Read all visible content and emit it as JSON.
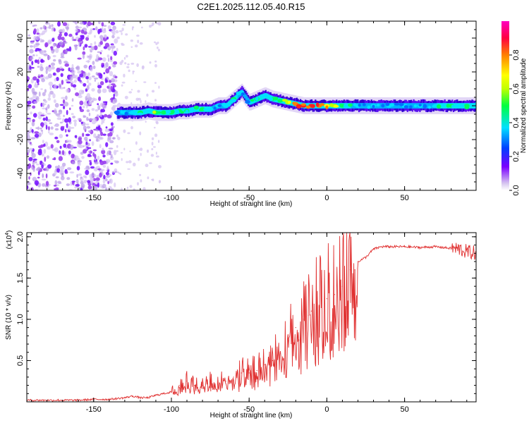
{
  "title": "C2E1.2025.112.05.40.R15",
  "chart_data": [
    {
      "type": "heatmap",
      "xlabel": "Height of straight line (km)",
      "ylabel": "Frequency (Hz)",
      "xlim": [
        -193,
        96
      ],
      "ylim": [
        -50,
        50
      ],
      "x_ticks": [
        -150,
        -100,
        -50,
        0,
        50
      ],
      "x_tick_labels": [
        "-150",
        "-100",
        "-50",
        "0",
        "50"
      ],
      "y_ticks": [
        -40,
        -20,
        0,
        20,
        40
      ],
      "y_tick_labels": [
        "-40",
        "-20",
        "0",
        "20",
        "40"
      ],
      "colorbar": {
        "label": "Normalized spectral amplitude",
        "range": [
          0,
          1
        ],
        "ticks": [
          0.0,
          0.2,
          0.4,
          0.6,
          0.8
        ],
        "tick_labels": [
          "0.0",
          "0.2",
          "0.4",
          "0.6",
          "0.8"
        ],
        "colormap": [
          "#d8c8f0",
          "#7a00ff",
          "#0040ff",
          "#00e0ff",
          "#00ff40",
          "#c0ff00",
          "#ffff00",
          "#ff8000",
          "#ff0040",
          "#ff00c0"
        ]
      },
      "noise_region_x": [
        -193,
        -135
      ],
      "trace": {
        "x": [
          -135,
          -130,
          -125,
          -120,
          -115,
          -110,
          -105,
          -100,
          -95,
          -90,
          -85,
          -80,
          -75,
          -70,
          -65,
          -60,
          -55,
          -50,
          -45,
          -40,
          -35,
          -30,
          -25,
          -20,
          -15,
          -10,
          -5,
          0,
          5,
          10,
          20,
          30,
          40,
          50,
          60,
          70,
          80,
          90,
          96
        ],
        "y": [
          -4,
          -4,
          -4,
          -4,
          -3,
          -4,
          -4,
          -4,
          -3,
          -3,
          -2,
          -2,
          -2,
          0,
          0,
          4,
          8,
          2,
          4,
          6,
          4,
          3,
          2,
          1,
          0,
          0,
          0,
          0,
          0,
          0,
          0,
          0,
          0,
          0,
          0,
          0,
          0,
          0,
          0
        ],
        "amplitude": [
          0.35,
          0.4,
          0.45,
          0.5,
          0.45,
          0.6,
          0.5,
          0.55,
          0.5,
          0.55,
          0.45,
          0.5,
          0.45,
          0.4,
          0.45,
          0.5,
          0.4,
          0.45,
          0.5,
          0.45,
          0.5,
          0.55,
          0.7,
          0.85,
          0.95,
          0.95,
          0.85,
          0.8,
          0.7,
          0.5,
          0.4,
          0.4,
          0.4,
          0.4,
          0.4,
          0.45,
          0.5,
          0.5,
          0.45
        ]
      }
    },
    {
      "type": "line",
      "xlabel": "Height of straight line (km)",
      "ylabel": "SNR (10 * v/v)",
      "multiplier_label": "(x10",
      "multiplier_exp": "4",
      "multiplier_close": ")",
      "xlim": [
        -193,
        96
      ],
      "ylim": [
        0,
        2.05
      ],
      "x_ticks": [
        -150,
        -100,
        -50,
        0,
        50
      ],
      "x_tick_labels": [
        "-150",
        "-100",
        "-50",
        "0",
        "50"
      ],
      "y_ticks": [
        0.5,
        1.0,
        1.5,
        2.0
      ],
      "y_tick_labels": [
        "0.5",
        "1.0",
        "1.5",
        "2.0"
      ],
      "series": [
        {
          "color": "#e03030",
          "x": [
            -193,
            -180,
            -170,
            -160,
            -150,
            -140,
            -130,
            -125,
            -120,
            -115,
            -110,
            -105,
            -100,
            -95,
            -90,
            -85,
            -80,
            -75,
            -70,
            -65,
            -60,
            -55,
            -50,
            -45,
            -40,
            -35,
            -30,
            -25,
            -20,
            -18,
            -15,
            -12,
            -10,
            -5,
            0,
            5,
            10,
            15,
            18,
            20,
            25,
            30,
            35,
            40,
            50,
            60,
            70,
            80,
            85,
            90,
            96
          ],
          "y": [
            0.02,
            0.02,
            0.02,
            0.02,
            0.03,
            0.03,
            0.05,
            0.07,
            0.05,
            0.05,
            0.08,
            0.1,
            0.12,
            0.2,
            0.25,
            0.2,
            0.2,
            0.25,
            0.25,
            0.25,
            0.3,
            0.35,
            0.35,
            0.38,
            0.45,
            0.5,
            0.6,
            0.8,
            0.9,
            0.75,
            1.0,
            1.05,
            1.1,
            1.15,
            1.25,
            1.3,
            1.4,
            1.6,
            1.6,
            1.7,
            1.75,
            1.85,
            1.88,
            1.88,
            1.88,
            1.87,
            1.88,
            1.86,
            1.85,
            1.82,
            1.8
          ]
        }
      ]
    }
  ]
}
